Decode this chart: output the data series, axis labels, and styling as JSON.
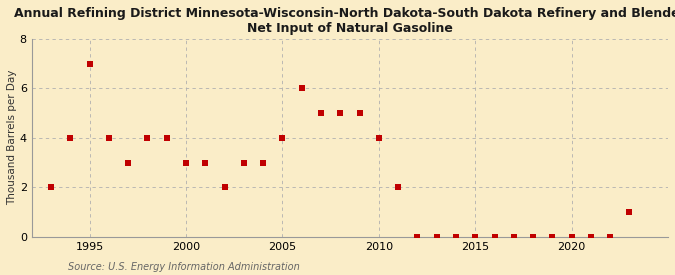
{
  "title_line1": "Annual Refining District Minnesota-Wisconsin-North Dakota-South Dakota Refinery and Blender",
  "title_line2": "Net Input of Natural Gasoline",
  "ylabel": "Thousand Barrels per Day",
  "source": "Source: U.S. Energy Information Administration",
  "years": [
    1993,
    1994,
    1995,
    1996,
    1997,
    1998,
    1999,
    2000,
    2001,
    2002,
    2003,
    2004,
    2005,
    2006,
    2007,
    2008,
    2009,
    2010,
    2011,
    2012,
    2013,
    2014,
    2015,
    2016,
    2017,
    2018,
    2019,
    2020,
    2021,
    2022,
    2023
  ],
  "values": [
    2,
    4,
    7,
    4,
    3,
    4,
    4,
    3,
    3,
    2,
    3,
    3,
    4,
    6,
    5,
    5,
    5,
    4,
    2,
    0,
    0,
    0,
    0,
    0,
    0,
    0,
    0,
    0,
    0,
    0,
    1
  ],
  "marker_color": "#c00000",
  "marker_size": 18,
  "bg_color": "#faedc8",
  "plot_bg_color": "#faedc8",
  "grid_color": "#b0b0b0",
  "xlim": [
    1992,
    2025
  ],
  "ylim": [
    0,
    8
  ],
  "yticks": [
    0,
    2,
    4,
    6,
    8
  ],
  "xticks": [
    1995,
    2000,
    2005,
    2010,
    2015,
    2020
  ],
  "title_fontsize": 9,
  "ylabel_fontsize": 7.5,
  "tick_fontsize": 8,
  "source_fontsize": 7
}
